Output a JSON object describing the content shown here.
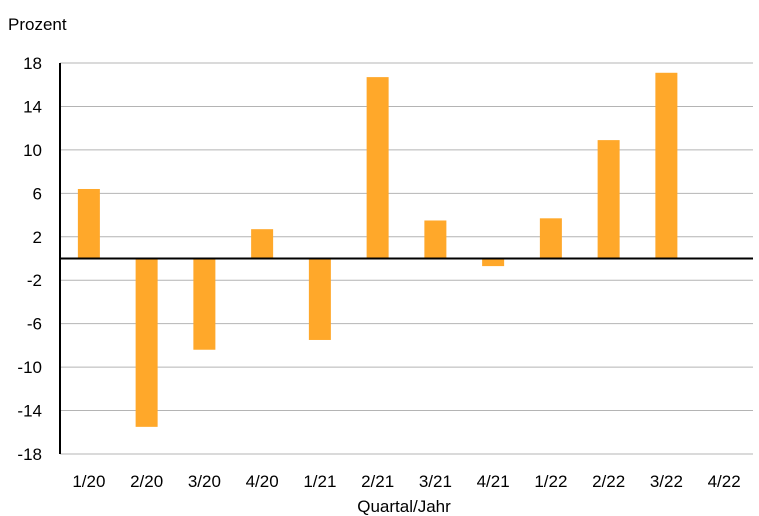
{
  "chart_data": {
    "type": "bar",
    "unit_label": "Prozent",
    "xlabel": "Quartal/Jahr",
    "ylabel": "",
    "categories": [
      "1/20",
      "2/20",
      "3/20",
      "4/20",
      "1/21",
      "2/21",
      "3/21",
      "4/21",
      "1/22",
      "2/22",
      "3/22",
      "4/22"
    ],
    "values": [
      6.4,
      -15.5,
      -8.4,
      2.7,
      -7.5,
      16.7,
      3.5,
      -0.7,
      3.7,
      10.9,
      17.1,
      null
    ],
    "ylim": [
      -18,
      18
    ],
    "yticks": [
      18,
      14,
      10,
      6,
      2,
      -2,
      -6,
      -10,
      -14,
      -18
    ],
    "grid": true,
    "bar_color": "#FFA82A"
  }
}
